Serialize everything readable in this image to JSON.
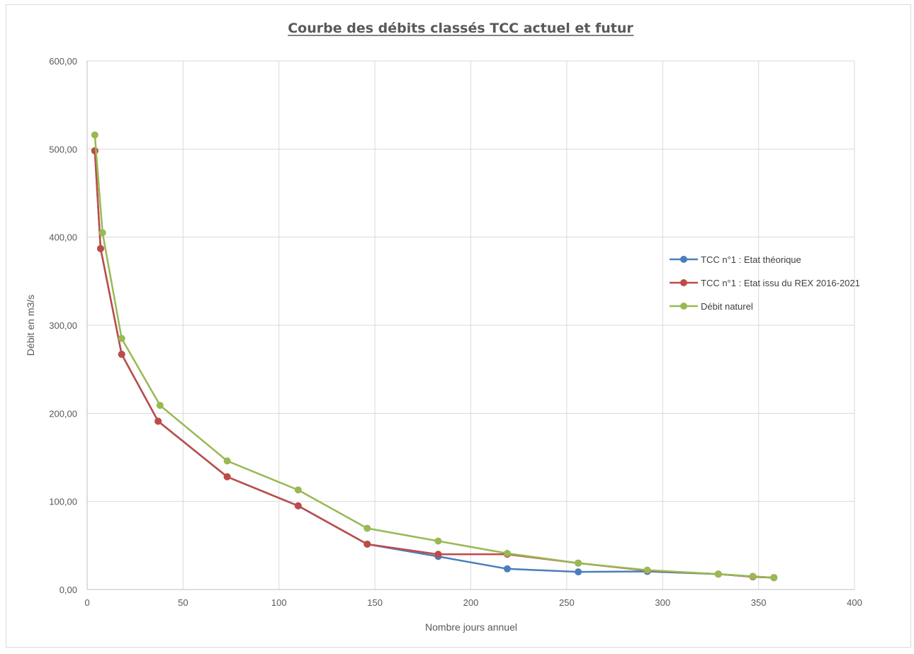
{
  "chart_data": {
    "type": "line",
    "title": "Courbe des débits classés TCC  actuel et futur",
    "xlabel": "Nombre jours annuel",
    "ylabel": "Débit en m3/s",
    "xlim": [
      0,
      400
    ],
    "ylim": [
      0,
      600
    ],
    "xticks": [
      0,
      50,
      100,
      150,
      200,
      250,
      300,
      350,
      400
    ],
    "yticks": [
      0,
      100,
      200,
      300,
      400,
      500,
      600
    ],
    "xtick_labels": [
      "0",
      "50",
      "100",
      "150",
      "200",
      "250",
      "300",
      "350",
      "400"
    ],
    "ytick_labels": [
      "0,00",
      "100,00",
      "200,00",
      "300,00",
      "400,00",
      "500,00",
      "600,00"
    ],
    "grid": true,
    "legend_position": "right",
    "series": [
      {
        "name": "TCC n°1 : Etat théorique",
        "color": "#4a7ebb",
        "x": [
          4,
          7,
          18,
          37,
          73,
          110,
          146,
          183,
          219,
          256,
          292,
          329,
          347,
          358
        ],
        "y": [
          498,
          387,
          267,
          191,
          128,
          95,
          51.5,
          37.5,
          23.5,
          20,
          20.5,
          17.5,
          14.5,
          13.5
        ]
      },
      {
        "name": "TCC n°1 : Etat issu du REX 2016-2021",
        "color": "#be4b48",
        "x": [
          4,
          7,
          18,
          37,
          73,
          110,
          146,
          183,
          219,
          256,
          292,
          329,
          347,
          358
        ],
        "y": [
          498,
          387,
          267,
          191,
          128,
          95,
          51.5,
          40,
          40,
          30,
          21.5,
          17.5,
          14.5,
          13.5
        ]
      },
      {
        "name": "Débit naturel",
        "color": "#98b954",
        "x": [
          4,
          8,
          18,
          38,
          73,
          110,
          146,
          183,
          219,
          256,
          292,
          329,
          347,
          358
        ],
        "y": [
          516,
          405,
          285,
          209,
          146,
          113,
          69.5,
          55,
          41,
          30,
          22,
          17.5,
          15,
          13.5
        ]
      }
    ]
  }
}
